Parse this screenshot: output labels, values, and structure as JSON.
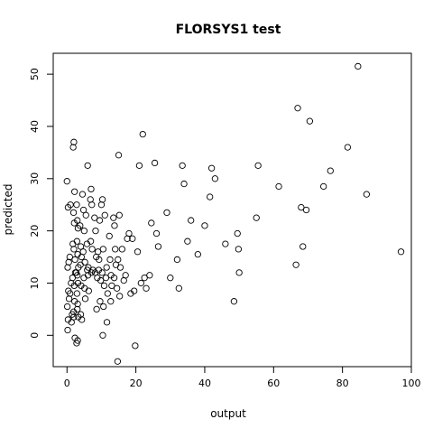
{
  "chart_data": {
    "type": "scatter",
    "title": "FLORSYS1 test",
    "xlabel": "output",
    "ylabel": "predicted",
    "xlim": [
      -4,
      100
    ],
    "ylim": [
      -6,
      54
    ],
    "xticks": [
      0,
      20,
      40,
      60,
      80,
      100
    ],
    "yticks": [
      0,
      10,
      20,
      30,
      40,
      50
    ],
    "grid": false,
    "legend": "none",
    "marker": "open-circle",
    "points": [
      [
        0.0,
        29.5
      ],
      [
        0.3,
        24.5
      ],
      [
        0.5,
        14.0
      ],
      [
        0.2,
        13.0
      ],
      [
        0.4,
        8.5
      ],
      [
        0.6,
        7.0
      ],
      [
        0.1,
        5.5
      ],
      [
        0.3,
        3.0
      ],
      [
        0.2,
        1.0
      ],
      [
        1.0,
        25.0
      ],
      [
        0.8,
        15.0
      ],
      [
        1.2,
        10.0
      ],
      [
        0.9,
        8.0
      ],
      [
        1.5,
        4.0
      ],
      [
        1.3,
        2.5
      ],
      [
        1.8,
        36.0
      ],
      [
        2.0,
        37.0
      ],
      [
        2.2,
        27.5
      ],
      [
        1.9,
        23.5
      ],
      [
        2.1,
        21.5
      ],
      [
        1.7,
        17.5
      ],
      [
        2.0,
        16.5
      ],
      [
        2.3,
        14.5
      ],
      [
        2.4,
        12.0
      ],
      [
        1.6,
        11.0
      ],
      [
        2.1,
        9.5
      ],
      [
        2.2,
        6.5
      ],
      [
        1.9,
        4.5
      ],
      [
        2.0,
        3.5
      ],
      [
        2.3,
        -0.5
      ],
      [
        2.8,
        25.0
      ],
      [
        3.0,
        22.0
      ],
      [
        3.2,
        20.5
      ],
      [
        2.9,
        18.0
      ],
      [
        3.1,
        15.5
      ],
      [
        3.3,
        13.0
      ],
      [
        2.7,
        12.0
      ],
      [
        3.0,
        11.5
      ],
      [
        3.2,
        10.0
      ],
      [
        2.9,
        8.0
      ],
      [
        3.1,
        6.0
      ],
      [
        3.0,
        5.0
      ],
      [
        3.3,
        3.5
      ],
      [
        3.1,
        -1.0
      ],
      [
        2.8,
        -1.5
      ],
      [
        3.8,
        21.0
      ],
      [
        4.0,
        17.0
      ],
      [
        4.2,
        15.0
      ],
      [
        3.9,
        13.5
      ],
      [
        4.1,
        9.5
      ],
      [
        4.0,
        4.0
      ],
      [
        4.3,
        3.0
      ],
      [
        4.5,
        27.0
      ],
      [
        4.8,
        24.0
      ],
      [
        5.0,
        20.0
      ],
      [
        4.7,
        16.0
      ],
      [
        5.2,
        14.0
      ],
      [
        4.9,
        11.0
      ],
      [
        5.1,
        9.0
      ],
      [
        5.3,
        7.0
      ],
      [
        5.5,
        23.0
      ],
      [
        5.8,
        17.5
      ],
      [
        6.0,
        32.5
      ],
      [
        6.2,
        13.0
      ],
      [
        5.9,
        12.5
      ],
      [
        6.1,
        11.5
      ],
      [
        6.3,
        8.5
      ],
      [
        6.8,
        26.0
      ],
      [
        7.0,
        28.0
      ],
      [
        7.2,
        25.0
      ],
      [
        6.9,
        18.0
      ],
      [
        7.3,
        16.5
      ],
      [
        7.1,
        12.0
      ],
      [
        7.5,
        12.5
      ],
      [
        8.0,
        22.5
      ],
      [
        8.3,
        20.0
      ],
      [
        8.5,
        15.0
      ],
      [
        8.2,
        12.0
      ],
      [
        8.8,
        11.0
      ],
      [
        8.6,
        5.0
      ],
      [
        9.0,
        16.0
      ],
      [
        9.3,
        14.5
      ],
      [
        9.5,
        22.0
      ],
      [
        9.2,
        12.5
      ],
      [
        9.8,
        10.5
      ],
      [
        9.6,
        6.5
      ],
      [
        10.0,
        25.0
      ],
      [
        10.3,
        26.0
      ],
      [
        10.5,
        16.5
      ],
      [
        10.2,
        12.0
      ],
      [
        10.8,
        9.5
      ],
      [
        10.6,
        5.5
      ],
      [
        10.4,
        0.0
      ],
      [
        11.0,
        23.0
      ],
      [
        11.5,
        13.0
      ],
      [
        11.3,
        11.0
      ],
      [
        11.8,
        8.0
      ],
      [
        11.6,
        2.5
      ],
      [
        12.3,
        19.0
      ],
      [
        12.5,
        14.5
      ],
      [
        12.8,
        11.5
      ],
      [
        13.0,
        9.5
      ],
      [
        12.7,
        6.5
      ],
      [
        13.5,
        22.5
      ],
      [
        13.8,
        21.0
      ],
      [
        14.0,
        16.5
      ],
      [
        14.2,
        13.5
      ],
      [
        13.7,
        11.0
      ],
      [
        14.5,
        9.0
      ],
      [
        14.8,
        14.5
      ],
      [
        15.0,
        34.5
      ],
      [
        15.2,
        23.0
      ],
      [
        15.5,
        13.0
      ],
      [
        15.3,
        7.5
      ],
      [
        14.7,
        -5.0
      ],
      [
        16.0,
        16.5
      ],
      [
        16.5,
        10.5
      ],
      [
        17.0,
        11.5
      ],
      [
        17.5,
        18.5
      ],
      [
        18.0,
        19.5
      ],
      [
        18.5,
        8.0
      ],
      [
        19.0,
        18.5
      ],
      [
        19.5,
        8.5
      ],
      [
        19.8,
        -2.0
      ],
      [
        20.5,
        16.0
      ],
      [
        21.0,
        32.5
      ],
      [
        21.5,
        10.0
      ],
      [
        22.0,
        38.5
      ],
      [
        22.5,
        11.0
      ],
      [
        23.0,
        9.0
      ],
      [
        24.0,
        11.5
      ],
      [
        24.5,
        21.5
      ],
      [
        25.5,
        33.0
      ],
      [
        26.0,
        19.5
      ],
      [
        26.5,
        17.0
      ],
      [
        29.0,
        23.5
      ],
      [
        30.0,
        11.0
      ],
      [
        32.0,
        14.5
      ],
      [
        32.5,
        9.0
      ],
      [
        33.5,
        32.5
      ],
      [
        34.0,
        29.0
      ],
      [
        35.0,
        18.0
      ],
      [
        36.0,
        22.0
      ],
      [
        38.0,
        15.5
      ],
      [
        40.0,
        21.0
      ],
      [
        41.5,
        26.5
      ],
      [
        42.0,
        32.0
      ],
      [
        43.0,
        30.0
      ],
      [
        46.0,
        17.5
      ],
      [
        48.5,
        6.5
      ],
      [
        49.5,
        19.5
      ],
      [
        49.8,
        16.5
      ],
      [
        50.0,
        12.0
      ],
      [
        55.0,
        22.5
      ],
      [
        55.5,
        32.5
      ],
      [
        61.5,
        28.5
      ],
      [
        66.5,
        13.5
      ],
      [
        67.0,
        43.5
      ],
      [
        68.0,
        24.5
      ],
      [
        68.5,
        17.0
      ],
      [
        69.5,
        24.0
      ],
      [
        70.5,
        41.0
      ],
      [
        74.5,
        28.5
      ],
      [
        76.5,
        31.5
      ],
      [
        81.5,
        36.0
      ],
      [
        84.5,
        51.5
      ],
      [
        87.0,
        27.0
      ],
      [
        97.0,
        16.0
      ]
    ]
  }
}
